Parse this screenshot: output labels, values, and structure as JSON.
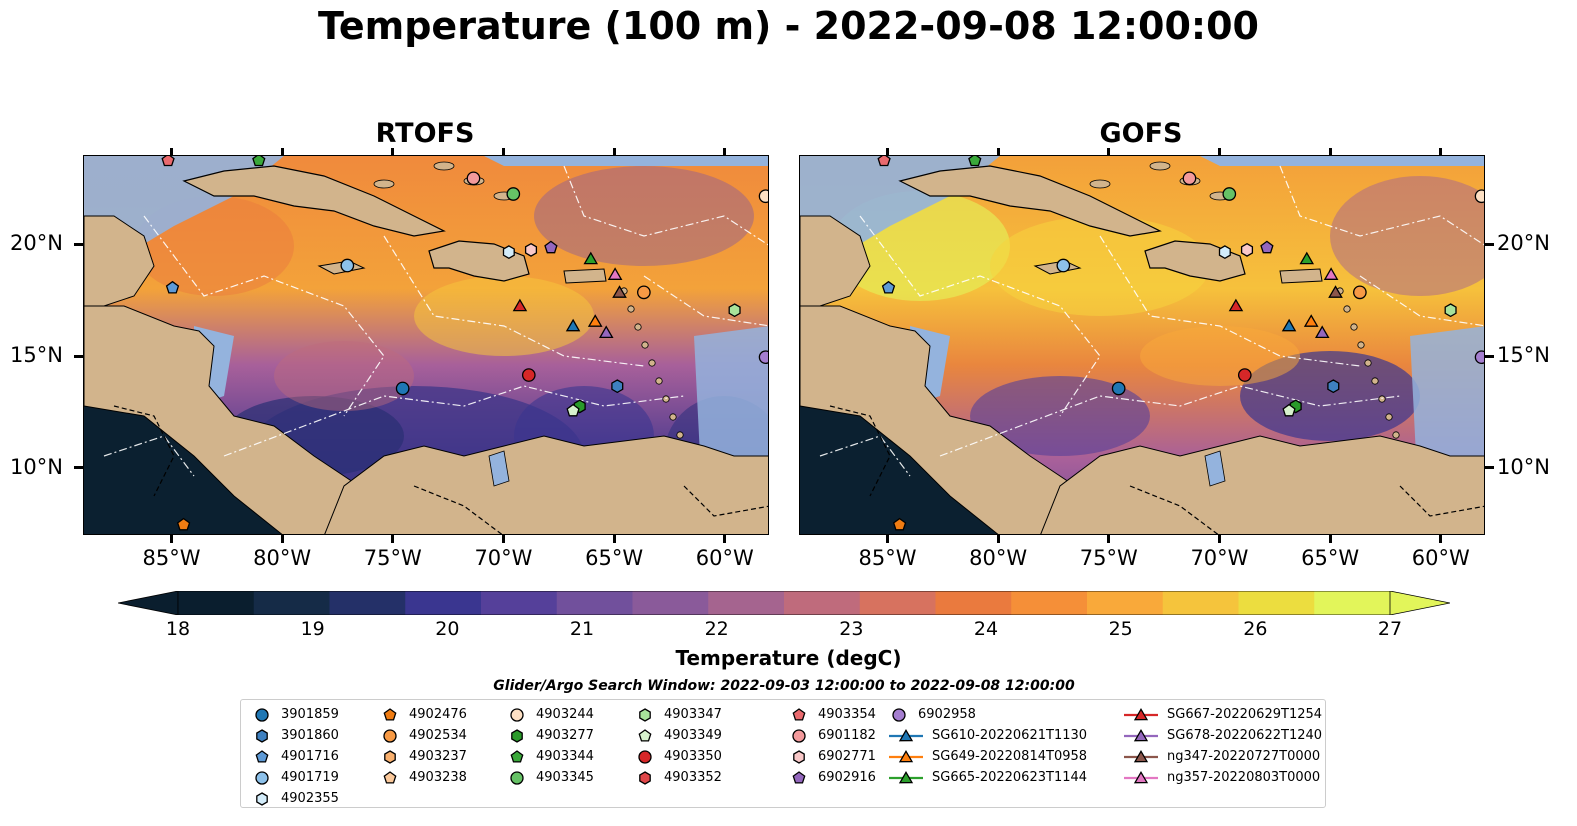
{
  "title": "Temperature (100 m) - 2022-09-08 12:00:00",
  "panels": [
    {
      "title": "RTOFS"
    },
    {
      "title": "GOFS"
    }
  ],
  "map": {
    "lon_labels": [
      "85°W",
      "80°W",
      "75°W",
      "70°W",
      "65°W",
      "60°W"
    ],
    "lat_labels": [
      "20°N",
      "15°N",
      "10°N"
    ],
    "extent": {
      "lon": [
        -89,
        -58
      ],
      "lat": [
        7,
        24
      ]
    },
    "colors": {
      "land": "#d2b48c",
      "shelf": "#94b3dd",
      "deep_cold": "#0b2030"
    }
  },
  "colorbar": {
    "label": "Temperature (degC)",
    "ticks": [
      "18",
      "19",
      "20",
      "21",
      "22",
      "23",
      "24",
      "25",
      "26",
      "27"
    ],
    "range": [
      18,
      27
    ],
    "extend": "both",
    "colormap": [
      "#0a1e2e",
      "#152b47",
      "#243068",
      "#3a3690",
      "#55409a",
      "#71509c",
      "#8a5a9a",
      "#a5648f",
      "#bf6b7c",
      "#d7725f",
      "#ea7a3e",
      "#f58f38",
      "#f9a93a",
      "#f5c43c",
      "#ecdd3f",
      "#e2f55a"
    ]
  },
  "search_window": "Glider/Argo Search Window: 2022-09-03 12:00:00 to 2022-09-08 12:00:00",
  "legend": {
    "columns": [
      [
        {
          "label": "3901859",
          "marker": "circle",
          "color": "#1f77b4"
        },
        {
          "label": "3901860",
          "marker": "hexagon",
          "color": "#3e80c0"
        },
        {
          "label": "4901716",
          "marker": "pentagon",
          "color": "#5e9ad6"
        },
        {
          "label": "4901719",
          "marker": "circle",
          "color": "#8dc1ea"
        },
        {
          "label": "4902355",
          "marker": "hexagon",
          "color": "#d3ecfa"
        }
      ],
      [
        {
          "label": "4902476",
          "marker": "pentagon",
          "color": "#f07c12"
        },
        {
          "label": "4902534",
          "marker": "circle",
          "color": "#f79a45"
        },
        {
          "label": "4903237",
          "marker": "hexagon",
          "color": "#f9b06e"
        },
        {
          "label": "4903238",
          "marker": "pentagon",
          "color": "#fbc99b"
        }
      ],
      [
        {
          "label": "4903244",
          "marker": "circle",
          "color": "#fde0c4"
        },
        {
          "label": "4903277",
          "marker": "hexagon",
          "color": "#2a9a2a"
        },
        {
          "label": "4903344",
          "marker": "pentagon",
          "color": "#3aa83a"
        },
        {
          "label": "4903345",
          "marker": "circle",
          "color": "#66c266"
        }
      ],
      [
        {
          "label": "4903347",
          "marker": "hexagon",
          "color": "#a8e29a"
        },
        {
          "label": "4903349",
          "marker": "pentagon",
          "color": "#d7f2cd"
        },
        {
          "label": "4903350",
          "marker": "circle",
          "color": "#d62728"
        },
        {
          "label": "4903352",
          "marker": "hexagon",
          "color": "#e0474a"
        }
      ],
      [
        {
          "label": "4903354",
          "marker": "pentagon",
          "color": "#ea6a6e"
        },
        {
          "label": "6901182",
          "marker": "circle",
          "color": "#f39a9c"
        },
        {
          "label": "6902771",
          "marker": "hexagon",
          "color": "#f9c8c8"
        },
        {
          "label": "6902916",
          "marker": "pentagon",
          "color": "#9467bd"
        }
      ],
      [
        {
          "label": "6902958",
          "marker": "circle",
          "color": "#a57ed0"
        },
        {
          "label": "SG610-20220621T1130",
          "marker": "triangle-line",
          "color": "#1f77b4"
        },
        {
          "label": "SG649-20220814T0958",
          "marker": "triangle-line",
          "color": "#ff7f0e"
        },
        {
          "label": "SG665-20220623T1144",
          "marker": "triangle-line",
          "color": "#2ca02c"
        }
      ],
      [
        {
          "label": "SG667-20220629T1254",
          "marker": "triangle-line",
          "color": "#d62728"
        },
        {
          "label": "SG678-20220622T1240",
          "marker": "triangle-line",
          "color": "#9467bd"
        },
        {
          "label": "ng347-20220727T0000",
          "marker": "triangle-line",
          "color": "#8c564b"
        },
        {
          "label": "ng357-20220803T0000",
          "marker": "triangle-line",
          "color": "#e377c2"
        }
      ]
    ]
  },
  "observations": [
    {
      "id": "3901859",
      "lon": -74.6,
      "lat": 13.6,
      "marker": "circle",
      "color": "#1f77b4"
    },
    {
      "id": "3901860",
      "lon": -64.9,
      "lat": 13.7,
      "marker": "hexagon",
      "color": "#3e80c0"
    },
    {
      "id": "4901716",
      "lon": -85.0,
      "lat": 18.1,
      "marker": "pentagon",
      "color": "#5e9ad6"
    },
    {
      "id": "4901719",
      "lon": -77.1,
      "lat": 19.1,
      "marker": "circle",
      "color": "#8dc1ea"
    },
    {
      "id": "4902355",
      "lon": -69.8,
      "lat": 19.7,
      "marker": "hexagon",
      "color": "#d3ecfa"
    },
    {
      "id": "4902476",
      "lon": -84.5,
      "lat": 7.5,
      "marker": "pentagon",
      "color": "#f07c12"
    },
    {
      "id": "4902534",
      "lon": -63.7,
      "lat": 17.9,
      "marker": "circle",
      "color": "#f79a45"
    },
    {
      "id": "4903244",
      "lon": -58.2,
      "lat": 22.2,
      "marker": "circle",
      "color": "#fde0c4"
    },
    {
      "id": "4903277",
      "lon": -66.6,
      "lat": 12.8,
      "marker": "hexagon",
      "color": "#2a9a2a"
    },
    {
      "id": "4903344",
      "lon": -81.1,
      "lat": 23.8,
      "marker": "pentagon",
      "color": "#3aa83a"
    },
    {
      "id": "4903345",
      "lon": -69.6,
      "lat": 22.3,
      "marker": "circle",
      "color": "#66c266"
    },
    {
      "id": "4903347",
      "lon": -59.6,
      "lat": 17.1,
      "marker": "hexagon",
      "color": "#a8e29a"
    },
    {
      "id": "4903349",
      "lon": -66.9,
      "lat": 12.6,
      "marker": "pentagon",
      "color": "#d7f2cd"
    },
    {
      "id": "4903350",
      "lon": -68.9,
      "lat": 14.2,
      "marker": "circle",
      "color": "#d62728"
    },
    {
      "id": "4903354",
      "lon": -85.2,
      "lat": 23.8,
      "marker": "pentagon",
      "color": "#ea6a6e"
    },
    {
      "id": "6901182",
      "lon": -71.4,
      "lat": 23.0,
      "marker": "circle",
      "color": "#f39a9c"
    },
    {
      "id": "6902771",
      "lon": -68.8,
      "lat": 19.8,
      "marker": "hexagon",
      "color": "#f9c8c8"
    },
    {
      "id": "6902916",
      "lon": -67.9,
      "lat": 19.9,
      "marker": "pentagon",
      "color": "#9467bd"
    },
    {
      "id": "6902958",
      "lon": -58.2,
      "lat": 15.0,
      "marker": "circle",
      "color": "#a57ed0"
    },
    {
      "id": "SG610-20220621T1130",
      "lon": -66.9,
      "lat": 16.4,
      "marker": "triangle",
      "color": "#1f77b4"
    },
    {
      "id": "SG649-20220814T0958",
      "lon": -65.9,
      "lat": 16.6,
      "marker": "triangle",
      "color": "#ff7f0e"
    },
    {
      "id": "SG665-20220623T1144",
      "lon": -66.1,
      "lat": 19.4,
      "marker": "triangle",
      "color": "#2ca02c"
    },
    {
      "id": "SG667-20220629T1254",
      "lon": -69.3,
      "lat": 17.3,
      "marker": "triangle",
      "color": "#d62728"
    },
    {
      "id": "SG678-20220622T1240",
      "lon": -65.4,
      "lat": 16.1,
      "marker": "triangle",
      "color": "#9467bd"
    },
    {
      "id": "ng347-20220727T0000",
      "lon": -64.8,
      "lat": 17.9,
      "marker": "triangle",
      "color": "#8c564b"
    },
    {
      "id": "ng357-20220803T0000",
      "lon": -65.0,
      "lat": 18.7,
      "marker": "triangle",
      "color": "#e377c2"
    }
  ]
}
